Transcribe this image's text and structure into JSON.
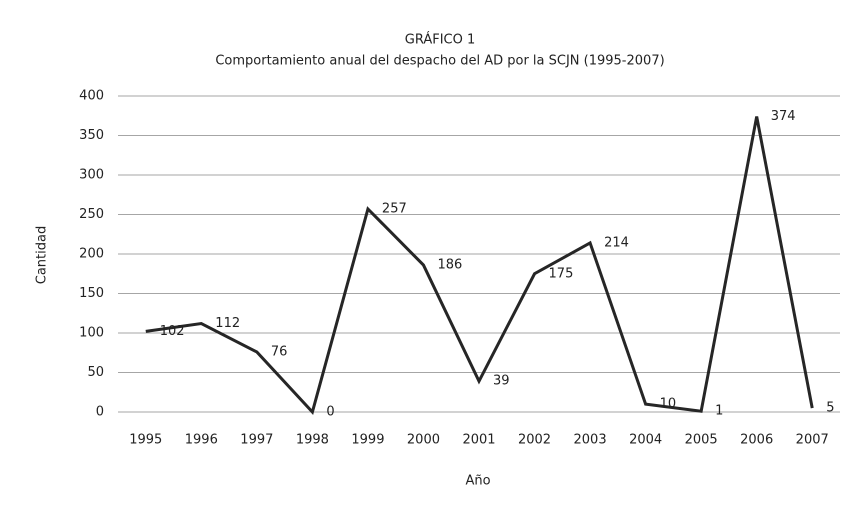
{
  "chart_data": {
    "type": "line",
    "title": "GRÁFICO 1",
    "subtitle": "Comportamiento anual del despacho del AD por la SCJN (1995-2007)",
    "x_label": "Año",
    "y_label": "Cantidad",
    "categories": [
      "1995",
      "1996",
      "1997",
      "1998",
      "1999",
      "2000",
      "2001",
      "2002",
      "2003",
      "2004",
      "2005",
      "2006",
      "2007"
    ],
    "series": [
      {
        "name": "Cantidad",
        "color": "#262626",
        "values": [
          102,
          112,
          76,
          0,
          257,
          186,
          39,
          175,
          214,
          10,
          1,
          374,
          5
        ]
      }
    ],
    "ylim": [
      0,
      400
    ],
    "yticks": [
      0,
      50,
      100,
      150,
      200,
      250,
      300,
      350,
      400
    ],
    "grid": true
  }
}
